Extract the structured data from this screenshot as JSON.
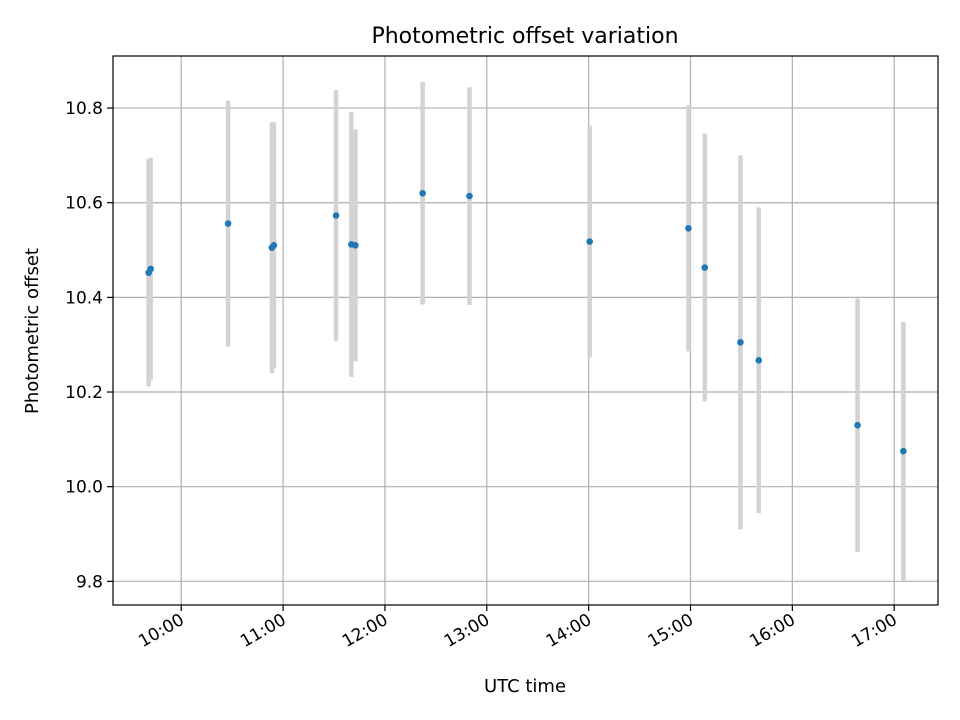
{
  "chart_data": {
    "type": "scatter",
    "title": "Photometric offset variation",
    "xlabel": "UTC time",
    "ylabel": "Photometric offset",
    "x_ticks": [
      "10:00",
      "11:00",
      "12:00",
      "13:00",
      "14:00",
      "15:00",
      "16:00",
      "17:00"
    ],
    "y_ticks": [
      "9.8",
      "10.0",
      "10.2",
      "10.4",
      "10.6",
      "10.8"
    ],
    "x_tick_values": [
      10,
      11,
      12,
      13,
      14,
      15,
      16,
      17
    ],
    "y_tick_values": [
      9.8,
      10.0,
      10.2,
      10.4,
      10.6,
      10.8
    ],
    "xlim": [
      9.33,
      17.43
    ],
    "ylim": [
      9.75,
      10.91
    ],
    "grid": true,
    "marker_color": "#1f77b4",
    "errorbar_color": "#d3d3d3",
    "points": [
      {
        "x": 9.68,
        "y": 10.452,
        "yerr": 0.24
      },
      {
        "x": 9.7,
        "y": 10.46,
        "yerr": 0.235
      },
      {
        "x": 10.46,
        "y": 10.556,
        "yerr": 0.26
      },
      {
        "x": 10.89,
        "y": 10.505,
        "yerr": 0.265
      },
      {
        "x": 10.91,
        "y": 10.51,
        "yerr": 0.26
      },
      {
        "x": 11.52,
        "y": 10.573,
        "yerr": 0.265
      },
      {
        "x": 11.67,
        "y": 10.512,
        "yerr": 0.28
      },
      {
        "x": 11.71,
        "y": 10.51,
        "yerr": 0.245
      },
      {
        "x": 12.37,
        "y": 10.62,
        "yerr": 0.235
      },
      {
        "x": 12.83,
        "y": 10.614,
        "yerr": 0.23
      },
      {
        "x": 14.01,
        "y": 10.518,
        "yerr": 0.245
      },
      {
        "x": 14.98,
        "y": 10.546,
        "yerr": 0.26
      },
      {
        "x": 15.14,
        "y": 10.463,
        "yerr": 0.283
      },
      {
        "x": 15.49,
        "y": 10.305,
        "yerr": 0.395
      },
      {
        "x": 15.67,
        "y": 10.267,
        "yerr": 0.323
      },
      {
        "x": 16.64,
        "y": 10.13,
        "yerr": 0.268
      },
      {
        "x": 17.09,
        "y": 10.075,
        "yerr": 0.273
      }
    ]
  }
}
